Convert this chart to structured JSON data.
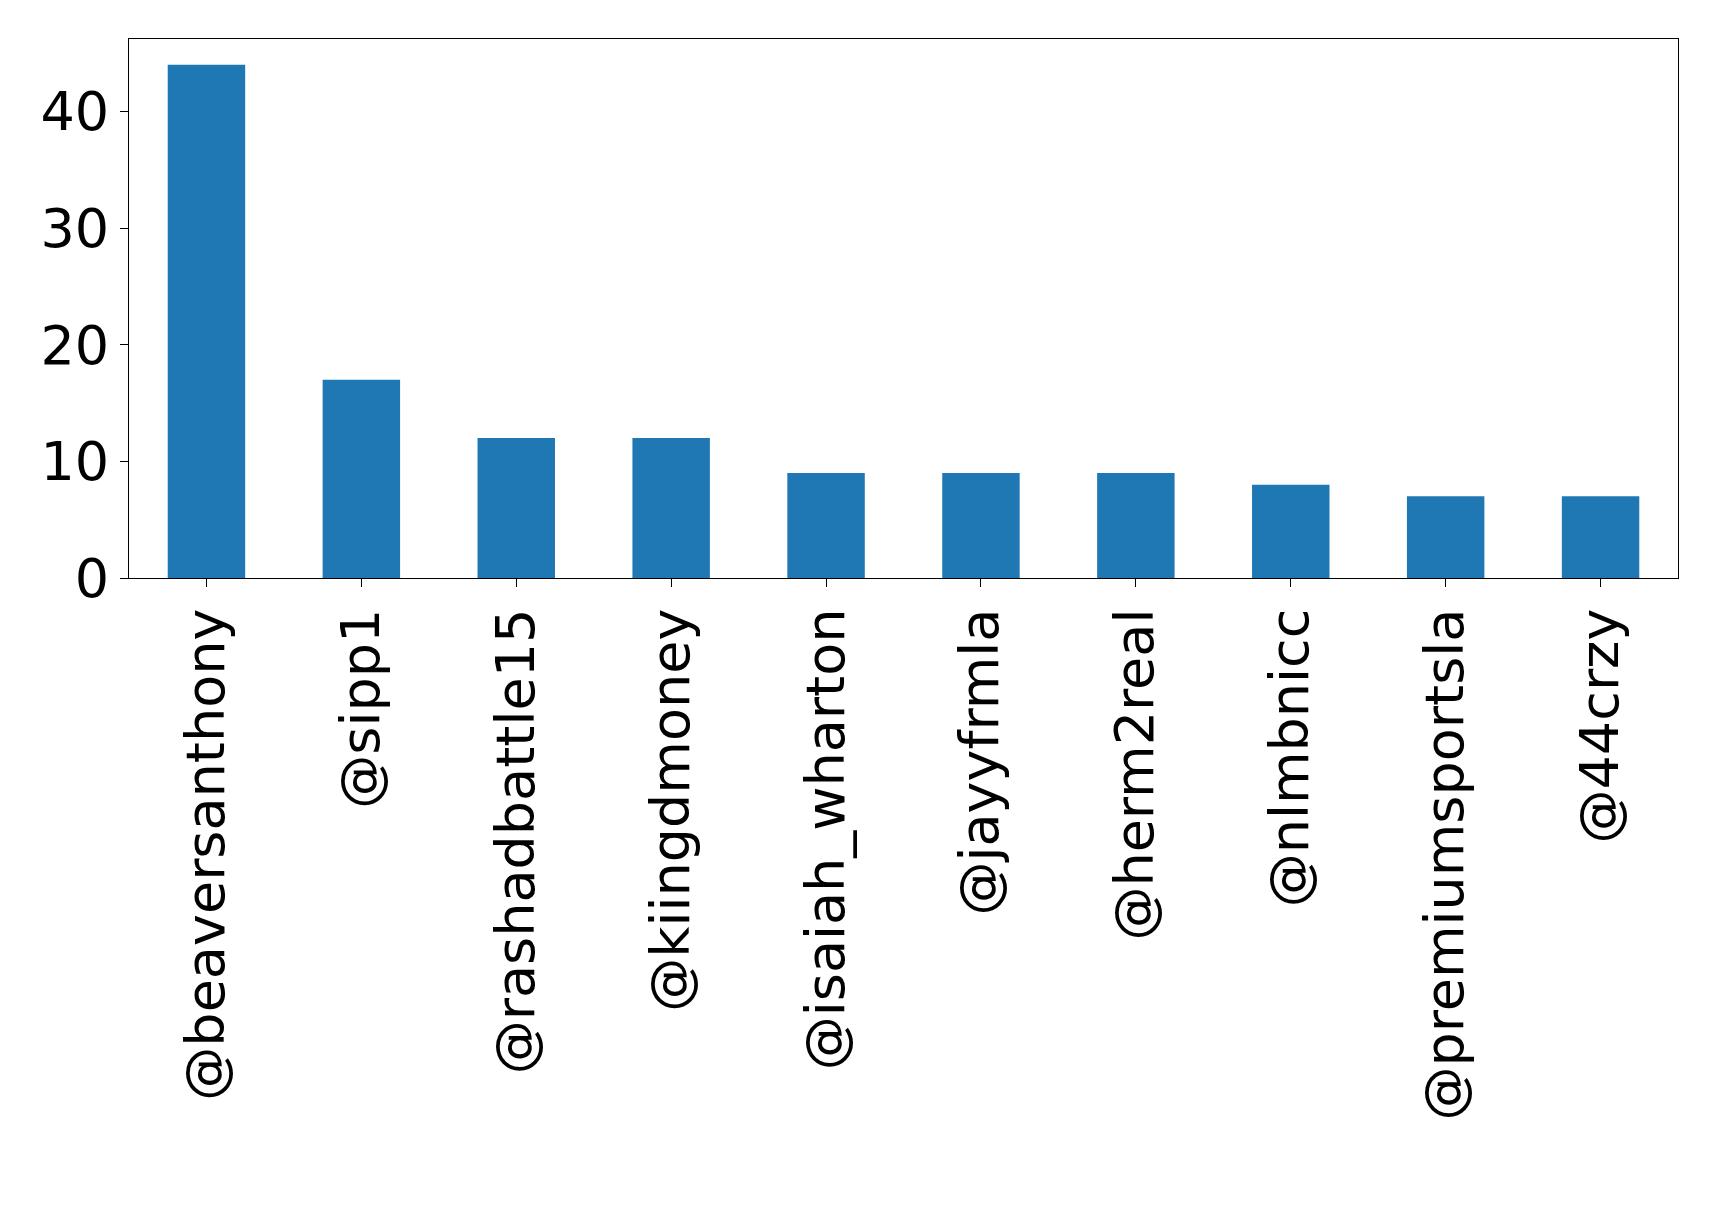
{
  "chart_data": {
    "type": "bar",
    "categories": [
      "@beaversanthony",
      "@sipp1",
      "@rashadbattle15",
      "@kiingdmoney",
      "@isaiah_wharton",
      "@jayyfrmla",
      "@herm2real",
      "@nlmbnicc",
      "@premiumsportsla",
      "@44crzy"
    ],
    "values": [
      44,
      17,
      12,
      12,
      9,
      9,
      9,
      8,
      7,
      7
    ],
    "color": "#1f77b4",
    "ylim": [
      0,
      46.2
    ],
    "yticks": [
      0,
      10,
      20,
      30,
      40
    ]
  }
}
